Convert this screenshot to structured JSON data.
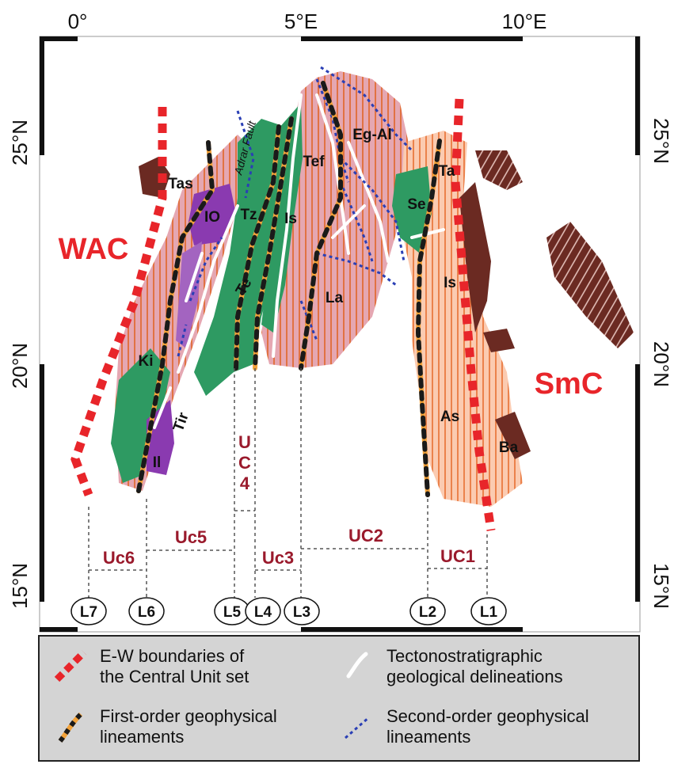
{
  "axes": {
    "top_ticks": [
      "0°",
      "5°E",
      "10°E"
    ],
    "left_ticks": [
      "25°N",
      "20°N",
      "15°N"
    ],
    "right_ticks": [
      "25°N",
      "20°N",
      "15°N"
    ]
  },
  "cratons": {
    "west": "WAC",
    "east": "SmC"
  },
  "terranes": [
    "Tas",
    "IO",
    "Tz",
    "Is",
    "Tef",
    "Eg-Al",
    "Ta",
    "Se",
    "Is",
    "La",
    "Te",
    "Ki",
    "Tir",
    "Il",
    "As",
    "Ba"
  ],
  "fault_label": "Adrar Fault",
  "units": {
    "uc6": "Uc6",
    "uc5": "Uc5",
    "uc4": "U\nC\n4",
    "uc3": "Uc3",
    "uc2": "UC2",
    "uc1": "UC1"
  },
  "lineaments": [
    "L7",
    "L6",
    "L5",
    "L4",
    "L3",
    "L2",
    "L1"
  ],
  "legend": {
    "ew_boundaries": [
      "E-W boundaries of",
      "the Central Unit set"
    ],
    "tectono": [
      "Tectonostratigraphic",
      "geological delineations"
    ],
    "first_order": [
      "First-order geophysical",
      "lineaments"
    ],
    "second_order": [
      "Second-order geophysical",
      "lineaments"
    ]
  },
  "colors": {
    "red_boundary": "#e8252a",
    "pink_terrane": "#dd8f9d",
    "salmon_terrane": "#f7b79a",
    "green": "#2e9a62",
    "purple": "#8a3ab0",
    "brown": "#6b2a22",
    "blue_dotted": "#2a3fb5",
    "label_red": "#9a1a2c"
  }
}
